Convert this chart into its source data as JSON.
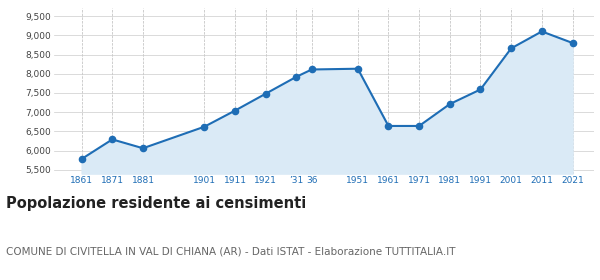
{
  "years": [
    1861,
    1871,
    1881,
    1901,
    1911,
    1921,
    1931,
    1936,
    1951,
    1961,
    1971,
    1981,
    1991,
    2001,
    2011,
    2021
  ],
  "tick_years": [
    1861,
    1871,
    1881,
    1901,
    1911,
    1921,
    1931,
    1936,
    1951,
    1961,
    1971,
    1981,
    1991,
    2001,
    2011,
    2021
  ],
  "tick_labels": [
    "1861",
    "1871",
    "1881",
    "1901",
    "1911",
    "1921",
    "’31",
    "36",
    "1951",
    "1961",
    "1971",
    "1981",
    "1991",
    "2001",
    "2011",
    "2021"
  ],
  "population": [
    5780,
    6290,
    6060,
    6620,
    7040,
    7480,
    7920,
    8110,
    8130,
    6640,
    6640,
    7210,
    7590,
    8660,
    9100,
    8800
  ],
  "ylim": [
    5400,
    9700
  ],
  "xlim": [
    1852,
    2028
  ],
  "yticks": [
    5500,
    6000,
    6500,
    7000,
    7500,
    8000,
    8500,
    9000,
    9500
  ],
  "ytick_labels": [
    "5,500",
    "6,000",
    "6,500",
    "7,000",
    "7,500",
    "8,000",
    "8,500",
    "9,000",
    "9,500"
  ],
  "line_color": "#1e6db5",
  "fill_color": "#daeaf6",
  "marker_color": "#1e6db5",
  "bg_color": "#ffffff",
  "grid_color_x": "#bbbbbb",
  "grid_color_y": "#cccccc",
  "tick_color": "#1e6db5",
  "title": "Popolazione residente ai censimenti",
  "subtitle": "COMUNE DI CIVITELLA IN VAL DI CHIANA (AR) - Dati ISTAT - Elaborazione TUTTITALIA.IT",
  "title_fontsize": 10.5,
  "subtitle_fontsize": 7.5
}
